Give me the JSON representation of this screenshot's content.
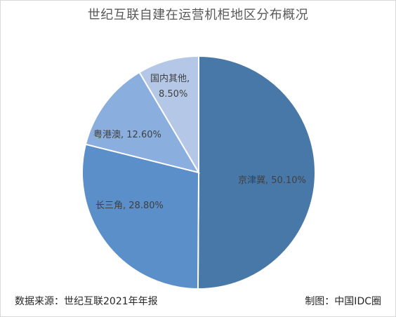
{
  "chart_data": {
    "type": "pie",
    "title": "世纪互联自建在运营机柜地区分布概况",
    "categories": [
      "京津冀",
      "长三角",
      "粤港澳",
      "国内其他"
    ],
    "values": [
      50.1,
      28.8,
      12.6,
      8.5
    ],
    "labels": [
      "京津冀, 50.10%",
      "长三角, 28.80%",
      "粤港澳, 12.60%",
      "国内其他,",
      "8.50%"
    ],
    "colors": [
      "#4878A8",
      "#5B8FC9",
      "#8AAFDE",
      "#B4C7E7"
    ],
    "legend": "none"
  },
  "footer": {
    "source": "数据来源：世纪互联2021年年报",
    "credit": "制图：中国IDC圈"
  }
}
